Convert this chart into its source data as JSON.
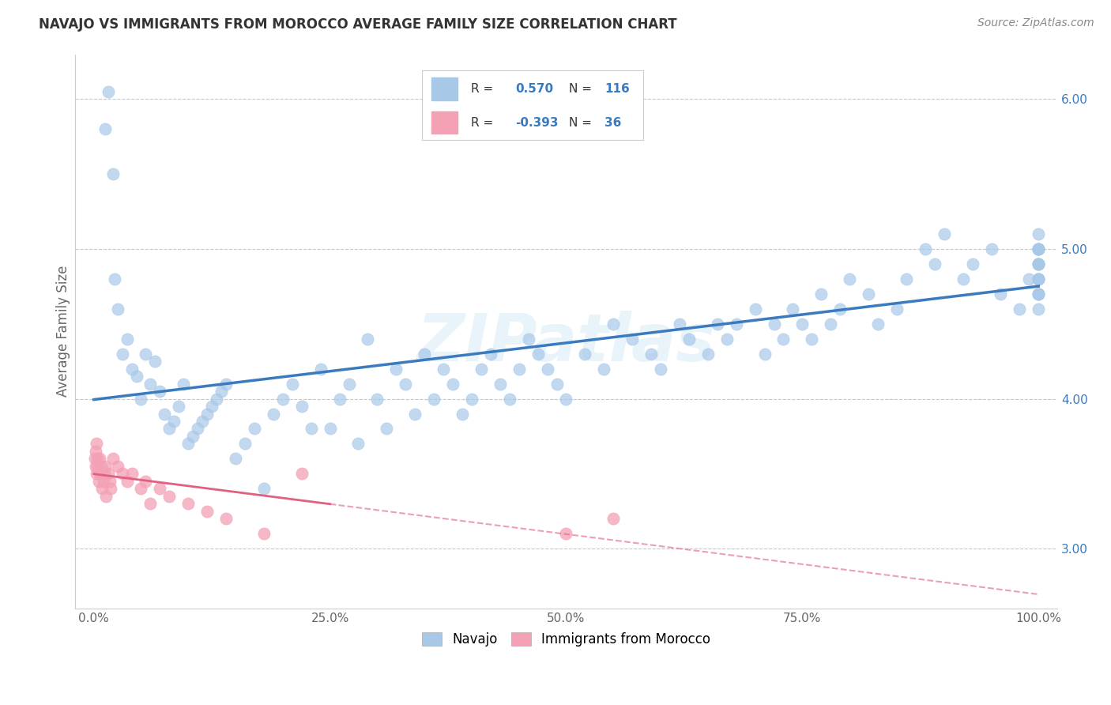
{
  "title": "NAVAJO VS IMMIGRANTS FROM MOROCCO AVERAGE FAMILY SIZE CORRELATION CHART",
  "source": "Source: ZipAtlas.com",
  "ylabel": "Average Family Size",
  "ylim": [
    2.6,
    6.3
  ],
  "yticks": [
    3.0,
    4.0,
    5.0,
    6.0
  ],
  "xtick_positions": [
    0,
    25,
    50,
    75,
    100
  ],
  "xticklabels": [
    "0.0%",
    "25.0%",
    "50.0%",
    "75.0%",
    "100.0%"
  ],
  "navajo_R": 0.57,
  "navajo_N": 116,
  "morocco_R": -0.393,
  "morocco_N": 36,
  "navajo_color": "#a8c8e8",
  "morocco_color": "#f4a0b5",
  "navajo_line_color": "#3a7abf",
  "morocco_line_color": "#e06080",
  "background_color": "#ffffff",
  "watermark": "ZIPatlas",
  "navajo_x": [
    1.2,
    1.5,
    2.0,
    2.2,
    2.5,
    3.0,
    3.5,
    4.0,
    4.5,
    5.0,
    5.5,
    6.0,
    6.5,
    7.0,
    7.5,
    8.0,
    8.5,
    9.0,
    9.5,
    10.0,
    10.5,
    11.0,
    11.5,
    12.0,
    12.5,
    13.0,
    13.5,
    14.0,
    15.0,
    16.0,
    17.0,
    18.0,
    19.0,
    20.0,
    21.0,
    22.0,
    23.0,
    24.0,
    25.0,
    26.0,
    27.0,
    28.0,
    29.0,
    30.0,
    31.0,
    32.0,
    33.0,
    34.0,
    35.0,
    36.0,
    37.0,
    38.0,
    39.0,
    40.0,
    41.0,
    42.0,
    43.0,
    44.0,
    45.0,
    46.0,
    47.0,
    48.0,
    49.0,
    50.0,
    52.0,
    54.0,
    55.0,
    57.0,
    59.0,
    60.0,
    62.0,
    63.0,
    65.0,
    66.0,
    67.0,
    68.0,
    70.0,
    71.0,
    72.0,
    73.0,
    74.0,
    75.0,
    76.0,
    77.0,
    78.0,
    79.0,
    80.0,
    82.0,
    83.0,
    85.0,
    86.0,
    88.0,
    89.0,
    90.0,
    92.0,
    93.0,
    95.0,
    96.0,
    98.0,
    99.0,
    100.0,
    100.0,
    100.0,
    100.0,
    100.0,
    100.0,
    100.0,
    100.0,
    100.0,
    100.0,
    100.0,
    100.0,
    100.0,
    100.0,
    100.0,
    100.0
  ],
  "navajo_y": [
    5.8,
    6.05,
    5.5,
    4.8,
    4.6,
    4.3,
    4.4,
    4.2,
    4.15,
    4.0,
    4.3,
    4.1,
    4.25,
    4.05,
    3.9,
    3.8,
    3.85,
    3.95,
    4.1,
    3.7,
    3.75,
    3.8,
    3.85,
    3.9,
    3.95,
    4.0,
    4.05,
    4.1,
    3.6,
    3.7,
    3.8,
    3.4,
    3.9,
    4.0,
    4.1,
    3.95,
    3.8,
    4.2,
    3.8,
    4.0,
    4.1,
    3.7,
    4.4,
    4.0,
    3.8,
    4.2,
    4.1,
    3.9,
    4.3,
    4.0,
    4.2,
    4.1,
    3.9,
    4.0,
    4.2,
    4.3,
    4.1,
    4.0,
    4.2,
    4.4,
    4.3,
    4.2,
    4.1,
    4.0,
    4.3,
    4.2,
    4.5,
    4.4,
    4.3,
    4.2,
    4.5,
    4.4,
    4.3,
    4.5,
    4.4,
    4.5,
    4.6,
    4.3,
    4.5,
    4.4,
    4.6,
    4.5,
    4.4,
    4.7,
    4.5,
    4.6,
    4.8,
    4.7,
    4.5,
    4.6,
    4.8,
    5.0,
    4.9,
    5.1,
    4.8,
    4.9,
    5.0,
    4.7,
    4.6,
    4.8,
    4.9,
    5.0,
    4.7,
    4.8,
    4.9,
    5.0,
    4.7,
    4.6,
    4.8,
    4.9,
    5.0,
    4.7,
    4.8,
    4.9,
    5.0,
    5.1
  ],
  "morocco_x": [
    0.1,
    0.15,
    0.2,
    0.25,
    0.3,
    0.35,
    0.4,
    0.5,
    0.6,
    0.7,
    0.8,
    0.9,
    1.0,
    1.1,
    1.2,
    1.3,
    1.5,
    1.7,
    2.0,
    2.5,
    3.0,
    3.5,
    4.0,
    5.0,
    5.5,
    6.0,
    7.0,
    8.0,
    10.0,
    12.0,
    14.0,
    18.0,
    22.0,
    50.0,
    55.0,
    1.8
  ],
  "morocco_y": [
    3.6,
    3.55,
    3.65,
    3.7,
    3.5,
    3.6,
    3.55,
    3.45,
    3.6,
    3.5,
    3.55,
    3.4,
    3.45,
    3.5,
    3.55,
    3.35,
    3.5,
    3.45,
    3.6,
    3.55,
    3.5,
    3.45,
    3.5,
    3.4,
    3.45,
    3.3,
    3.4,
    3.35,
    3.3,
    3.25,
    3.2,
    3.1,
    3.5,
    3.1,
    3.2,
    3.4
  ]
}
